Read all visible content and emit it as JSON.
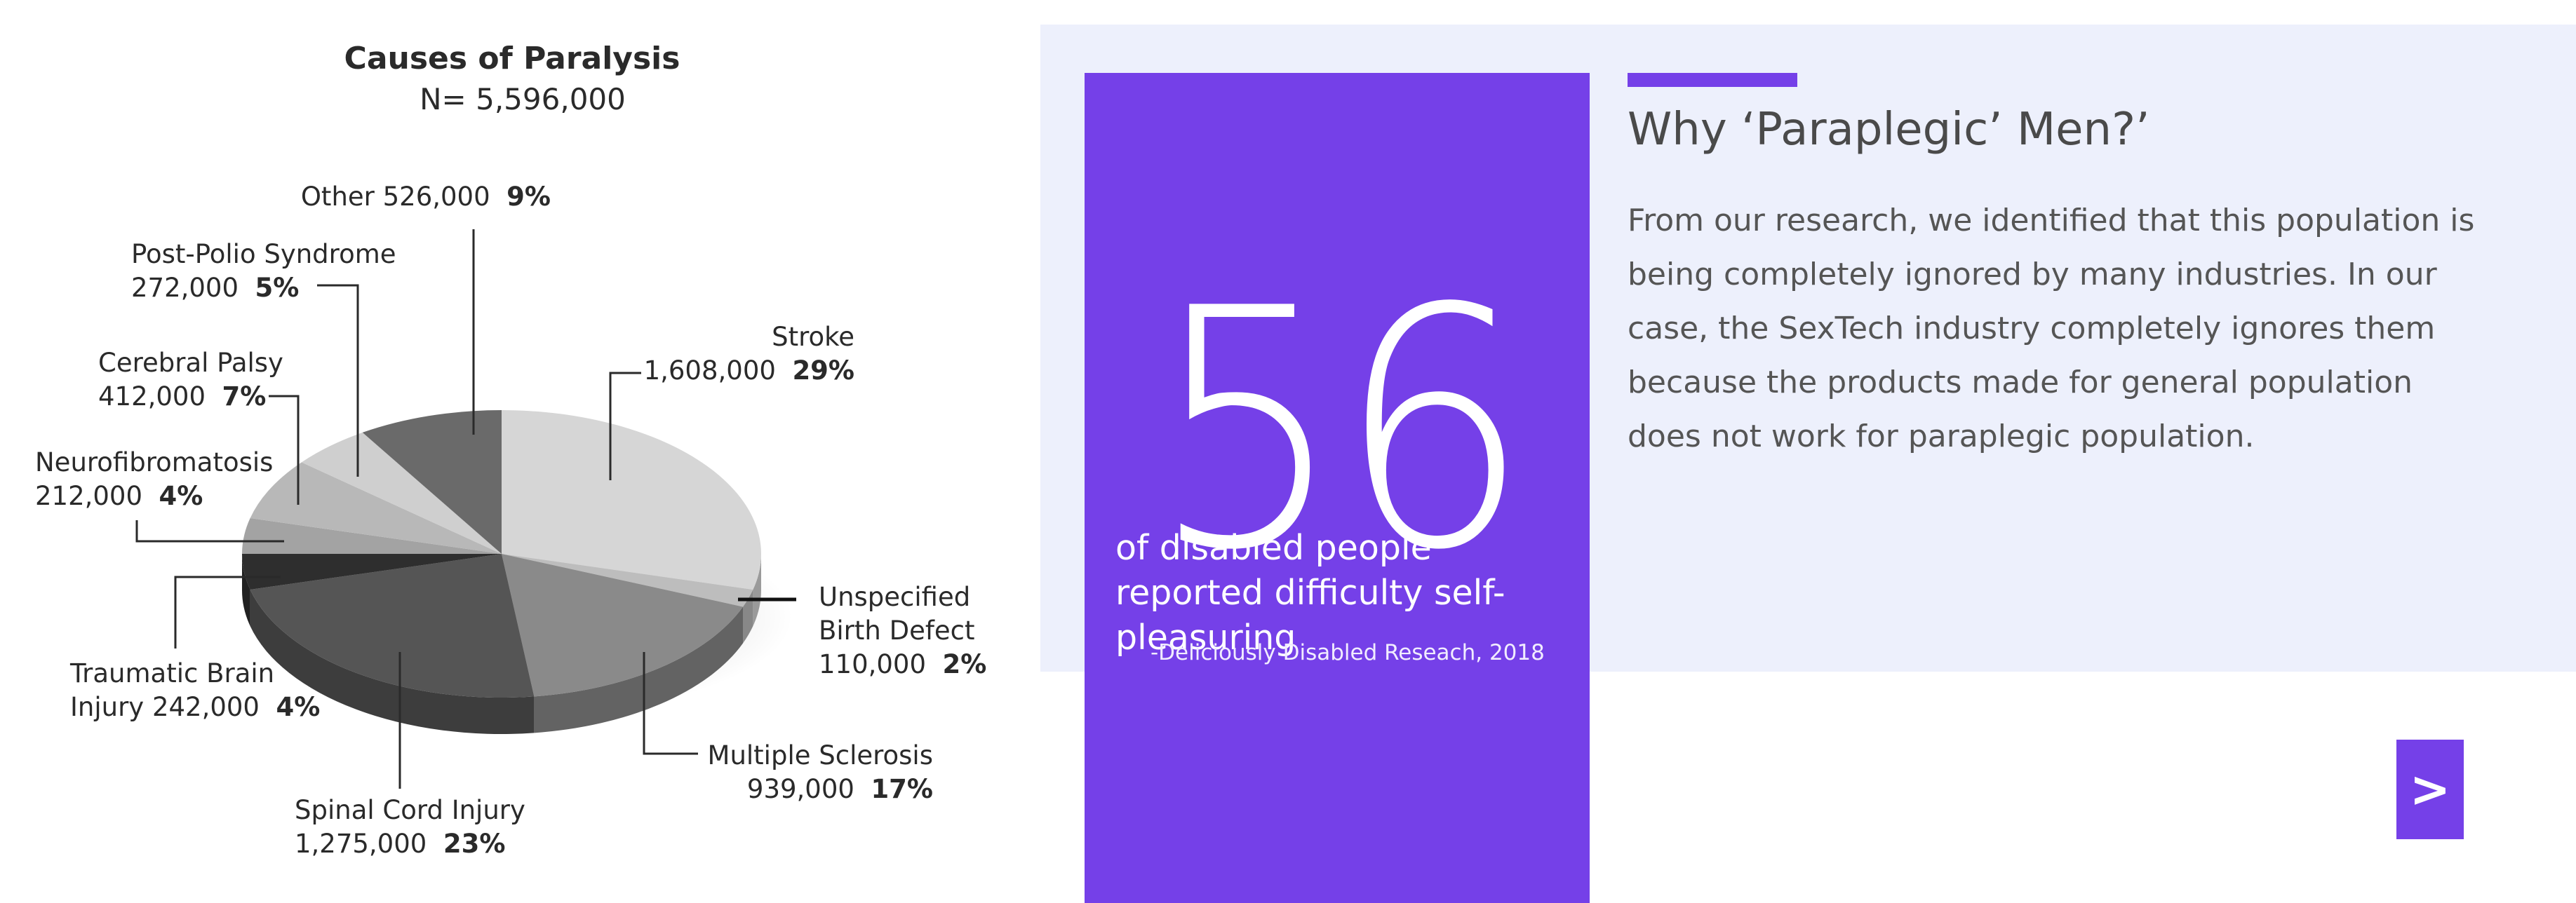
{
  "chart_data": {
    "type": "pie",
    "title": "Causes of Paralysis",
    "subtitle": "N= 5,596,000",
    "slices": [
      {
        "label": "Stroke",
        "count": "1,608,000",
        "percent": "29%",
        "value": 29,
        "color": "#d6d6d6"
      },
      {
        "label": "Unspecified Birth Defect",
        "label_lines": [
          "Unspecified",
          "Birth Defect"
        ],
        "count": "110,000",
        "percent": "2%",
        "value": 2,
        "color": "#bdbdbd"
      },
      {
        "label": "Multiple Sclerosis",
        "count": "939,000",
        "percent": "17%",
        "value": 17,
        "color": "#8a8a8a"
      },
      {
        "label": "Spinal Cord Injury",
        "count": "1,275,000",
        "percent": "23%",
        "value": 23,
        "color": "#555555"
      },
      {
        "label": "Traumatic Brain Injury",
        "label_lines": [
          "Traumatic Brain",
          "Injury 242,000"
        ],
        "count": "242,000",
        "percent": "4%",
        "value": 4,
        "color": "#2e2e2e"
      },
      {
        "label": "Neurofibromatosis",
        "count": "212,000",
        "percent": "4%",
        "value": 4,
        "color": "#a3a3a3"
      },
      {
        "label": "Cerebral Palsy",
        "count": "412,000",
        "percent": "7%",
        "value": 7,
        "color": "#b8b8b8"
      },
      {
        "label": "Post-Polio Syndrome",
        "count": "272,000",
        "percent": "5%",
        "value": 5,
        "color": "#cfcfcf"
      },
      {
        "label": "Other",
        "count": "526,000",
        "percent": "9%",
        "value": 9,
        "color": "#6a6a6a"
      }
    ]
  },
  "stat": {
    "number": "56",
    "caption": "of disabled people reported difficulty self-pleasuring",
    "source": "-Deliciously Disabled Reseach, 2018"
  },
  "info": {
    "heading": "Why ‘Paraplegic’ Men?’",
    "body": "From our research, we identified that this population is being completely ignored by many industries. In our case, the SexTech industry completely ignores them because the products made for general population does not work for paraplegic population."
  },
  "nav": {
    "next_label": ">"
  },
  "colors": {
    "accent": "#7540e8",
    "panel_bg": "#edf0fc"
  }
}
